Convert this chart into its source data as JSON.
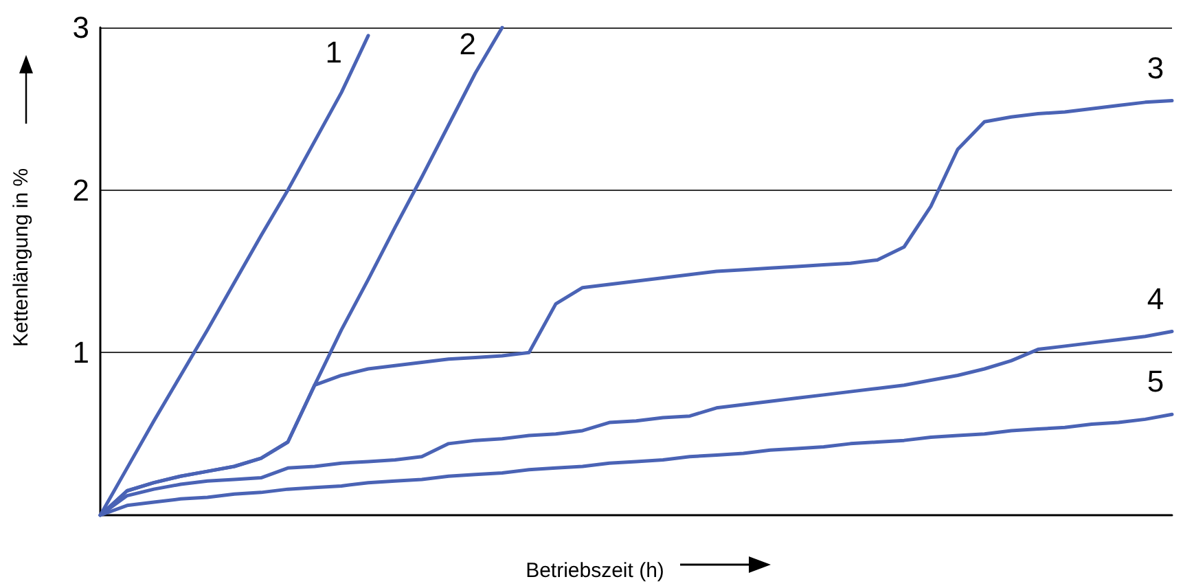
{
  "chart_data": {
    "type": "line",
    "xlabel": "Betriebszeit (h)",
    "ylabel": "Kettenlängung in %",
    "categories": [
      null,
      null,
      null,
      null,
      null,
      null,
      null,
      null,
      null,
      null,
      null,
      null,
      null,
      null,
      null,
      null,
      null,
      null,
      null,
      null,
      null,
      null,
      null,
      null,
      null,
      null,
      null,
      null,
      null,
      null,
      null,
      null,
      null,
      null,
      null,
      null,
      null,
      null,
      null,
      null,
      null
    ],
    "series": [
      {
        "name": "1",
        "color": "#4a63b5",
        "values": [
          0,
          0.29,
          0.58,
          0.86,
          1.14,
          1.43,
          1.72,
          2.0,
          2.3,
          2.6,
          2.95,
          null,
          null,
          null,
          null,
          null,
          null,
          null,
          null,
          null,
          null,
          null,
          null,
          null,
          null,
          null,
          null,
          null,
          null,
          null,
          null,
          null,
          null,
          null,
          null,
          null,
          null,
          null,
          null,
          null,
          null
        ]
      },
      {
        "name": "2",
        "color": "#4a63b5",
        "values": [
          0,
          0.15,
          0.2,
          0.24,
          0.27,
          0.3,
          0.35,
          0.45,
          0.8,
          1.14,
          1.45,
          1.77,
          2.08,
          2.4,
          2.72,
          3.0,
          null,
          null,
          null,
          null,
          null,
          null,
          null,
          null,
          null,
          null,
          null,
          null,
          null,
          null,
          null,
          null,
          null,
          null,
          null,
          null,
          null,
          null,
          null,
          null,
          null
        ]
      },
      {
        "name": "3",
        "color": "#4a63b5",
        "values": [
          0,
          0.15,
          0.2,
          0.24,
          0.27,
          0.3,
          0.35,
          0.45,
          0.8,
          0.86,
          0.9,
          0.92,
          0.94,
          0.96,
          0.97,
          0.98,
          1.0,
          1.3,
          1.4,
          1.42,
          1.44,
          1.46,
          1.48,
          1.5,
          1.51,
          1.52,
          1.53,
          1.54,
          1.55,
          1.57,
          1.65,
          1.9,
          2.25,
          2.42,
          2.45,
          2.47,
          2.48,
          2.5,
          2.52,
          2.54,
          2.55
        ]
      },
      {
        "name": "4",
        "color": "#4a63b5",
        "values": [
          0,
          0.12,
          0.16,
          0.19,
          0.21,
          0.22,
          0.23,
          0.29,
          0.3,
          0.32,
          0.33,
          0.34,
          0.36,
          0.44,
          0.46,
          0.47,
          0.49,
          0.5,
          0.52,
          0.57,
          0.58,
          0.6,
          0.61,
          0.66,
          0.68,
          0.7,
          0.72,
          0.74,
          0.76,
          0.78,
          0.8,
          0.83,
          0.86,
          0.9,
          0.95,
          1.02,
          1.04,
          1.06,
          1.08,
          1.1,
          1.13
        ]
      },
      {
        "name": "5",
        "color": "#4a63b5",
        "values": [
          0,
          0.06,
          0.08,
          0.1,
          0.11,
          0.13,
          0.14,
          0.16,
          0.17,
          0.18,
          0.2,
          0.21,
          0.22,
          0.24,
          0.25,
          0.26,
          0.28,
          0.29,
          0.3,
          0.32,
          0.33,
          0.34,
          0.36,
          0.37,
          0.38,
          0.4,
          0.41,
          0.42,
          0.44,
          0.45,
          0.46,
          0.48,
          0.49,
          0.5,
          0.52,
          0.53,
          0.54,
          0.56,
          0.57,
          0.59,
          0.62
        ]
      }
    ],
    "ylim": [
      0,
      3
    ],
    "yticks": [
      1,
      2,
      3
    ],
    "grid": "y",
    "marker": "none",
    "line_style": "solid",
    "legend": false
  }
}
